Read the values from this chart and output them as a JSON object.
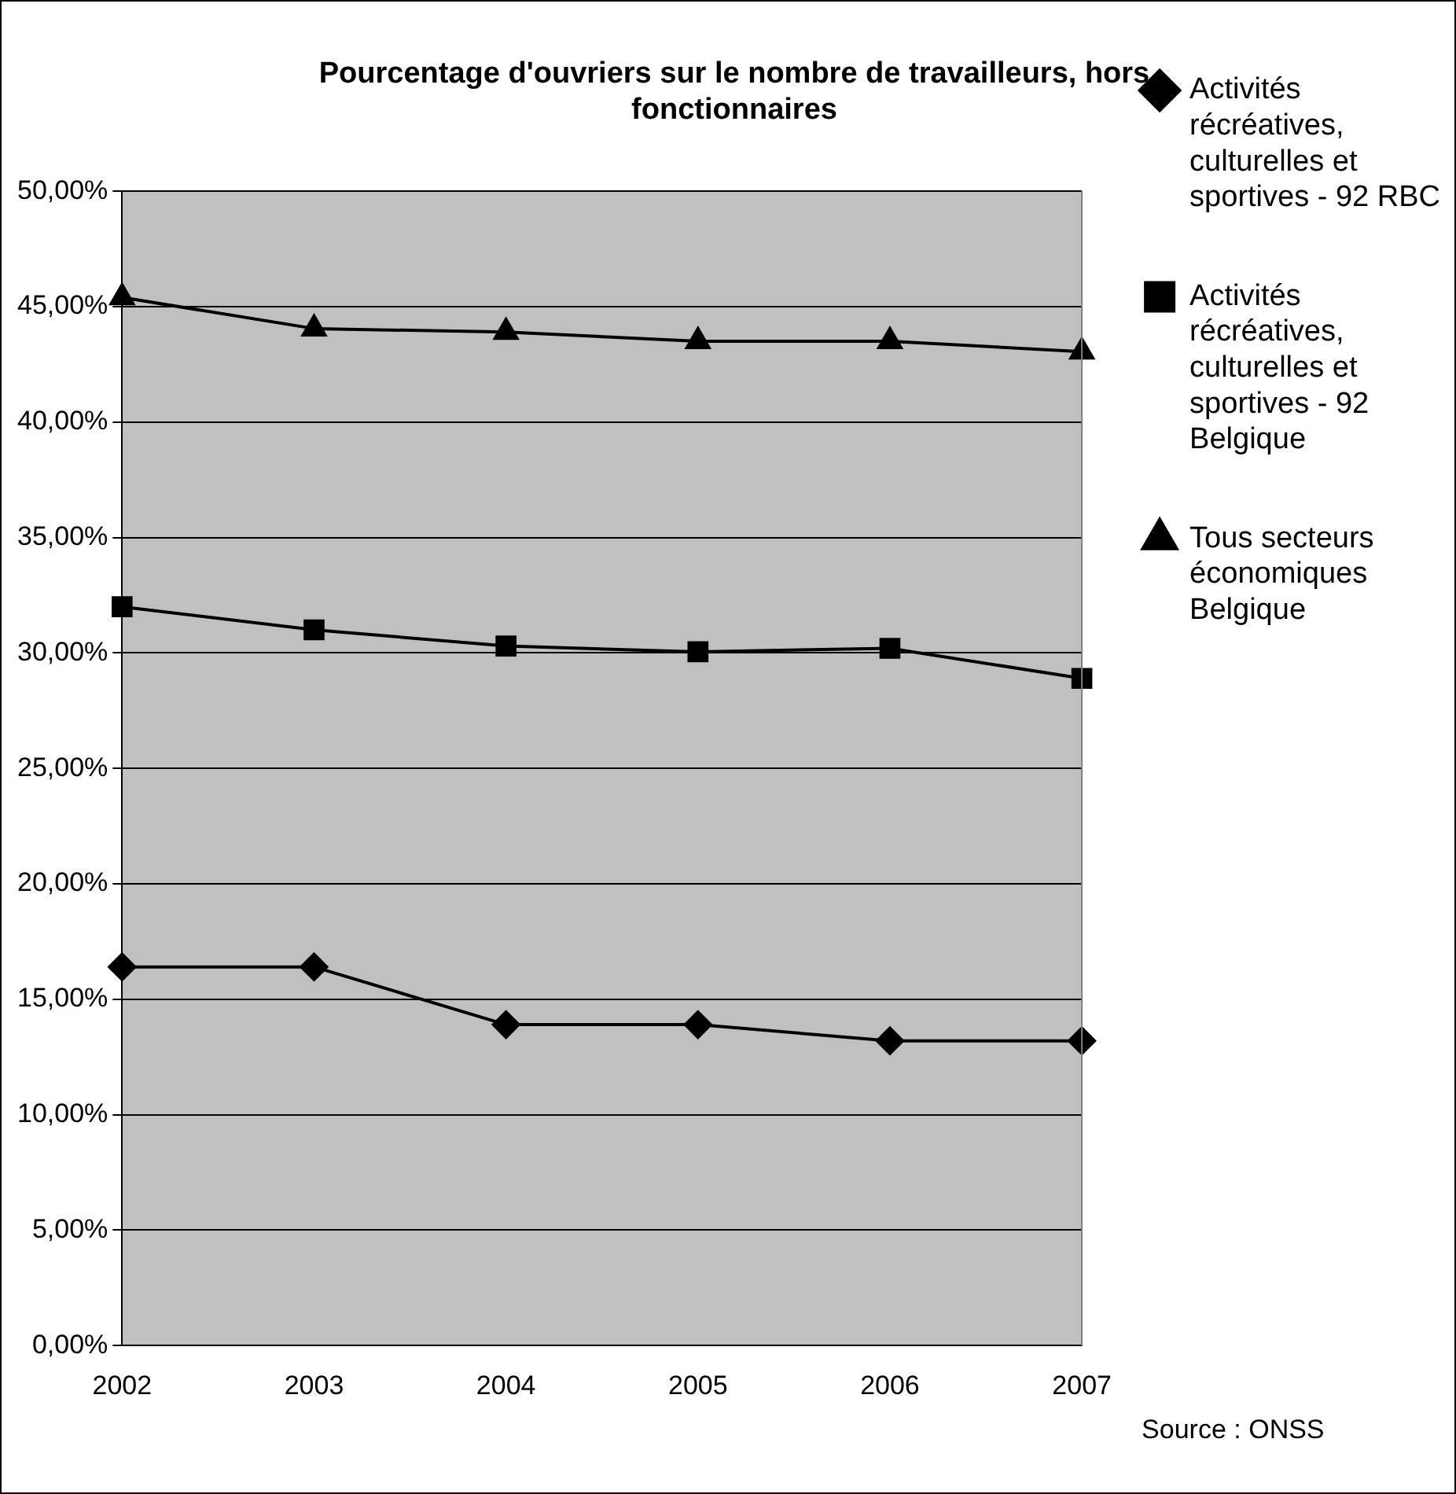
{
  "chart_data": {
    "type": "line",
    "title": "Pourcentage d'ouvriers sur le nombre de travailleurs, hors fonctionnaires",
    "categories": [
      "2002",
      "2003",
      "2004",
      "2005",
      "2006",
      "2007"
    ],
    "series": [
      {
        "name": "Activités récréatives, culturelles et sportives - 92 RBC",
        "color": "#000000",
        "marker": "diamond",
        "values": [
          16.4,
          16.4,
          13.9,
          13.9,
          13.2,
          13.2
        ]
      },
      {
        "name": "Activités récréatives, culturelles et sportives - 92 Belgique",
        "color": "#000000",
        "marker": "square",
        "values": [
          32.0,
          31.0,
          30.3,
          30.05,
          30.2,
          28.9
        ]
      },
      {
        "name": "Tous secteurs économiques Belgique",
        "color": "#000000",
        "marker": "triangle",
        "values": [
          45.4,
          44.05,
          43.9,
          43.5,
          43.5,
          43.05
        ]
      }
    ],
    "ylim": [
      0,
      50
    ],
    "yticks": [
      {
        "value": 0,
        "label": "0,00%"
      },
      {
        "value": 5,
        "label": "5,00%"
      },
      {
        "value": 10,
        "label": "10,00%"
      },
      {
        "value": 15,
        "label": "15,00%"
      },
      {
        "value": 20,
        "label": "20,00%"
      },
      {
        "value": 25,
        "label": "25,00%"
      },
      {
        "value": 30,
        "label": "30,00%"
      },
      {
        "value": 35,
        "label": "35,00%"
      },
      {
        "value": 40,
        "label": "40,00%"
      },
      {
        "value": 45,
        "label": "45,00%"
      },
      {
        "value": 50,
        "label": "50,00%"
      }
    ],
    "grid": "y",
    "legend": "right",
    "line_style": "solid",
    "annotations": [
      "Source : ONSS"
    ]
  }
}
